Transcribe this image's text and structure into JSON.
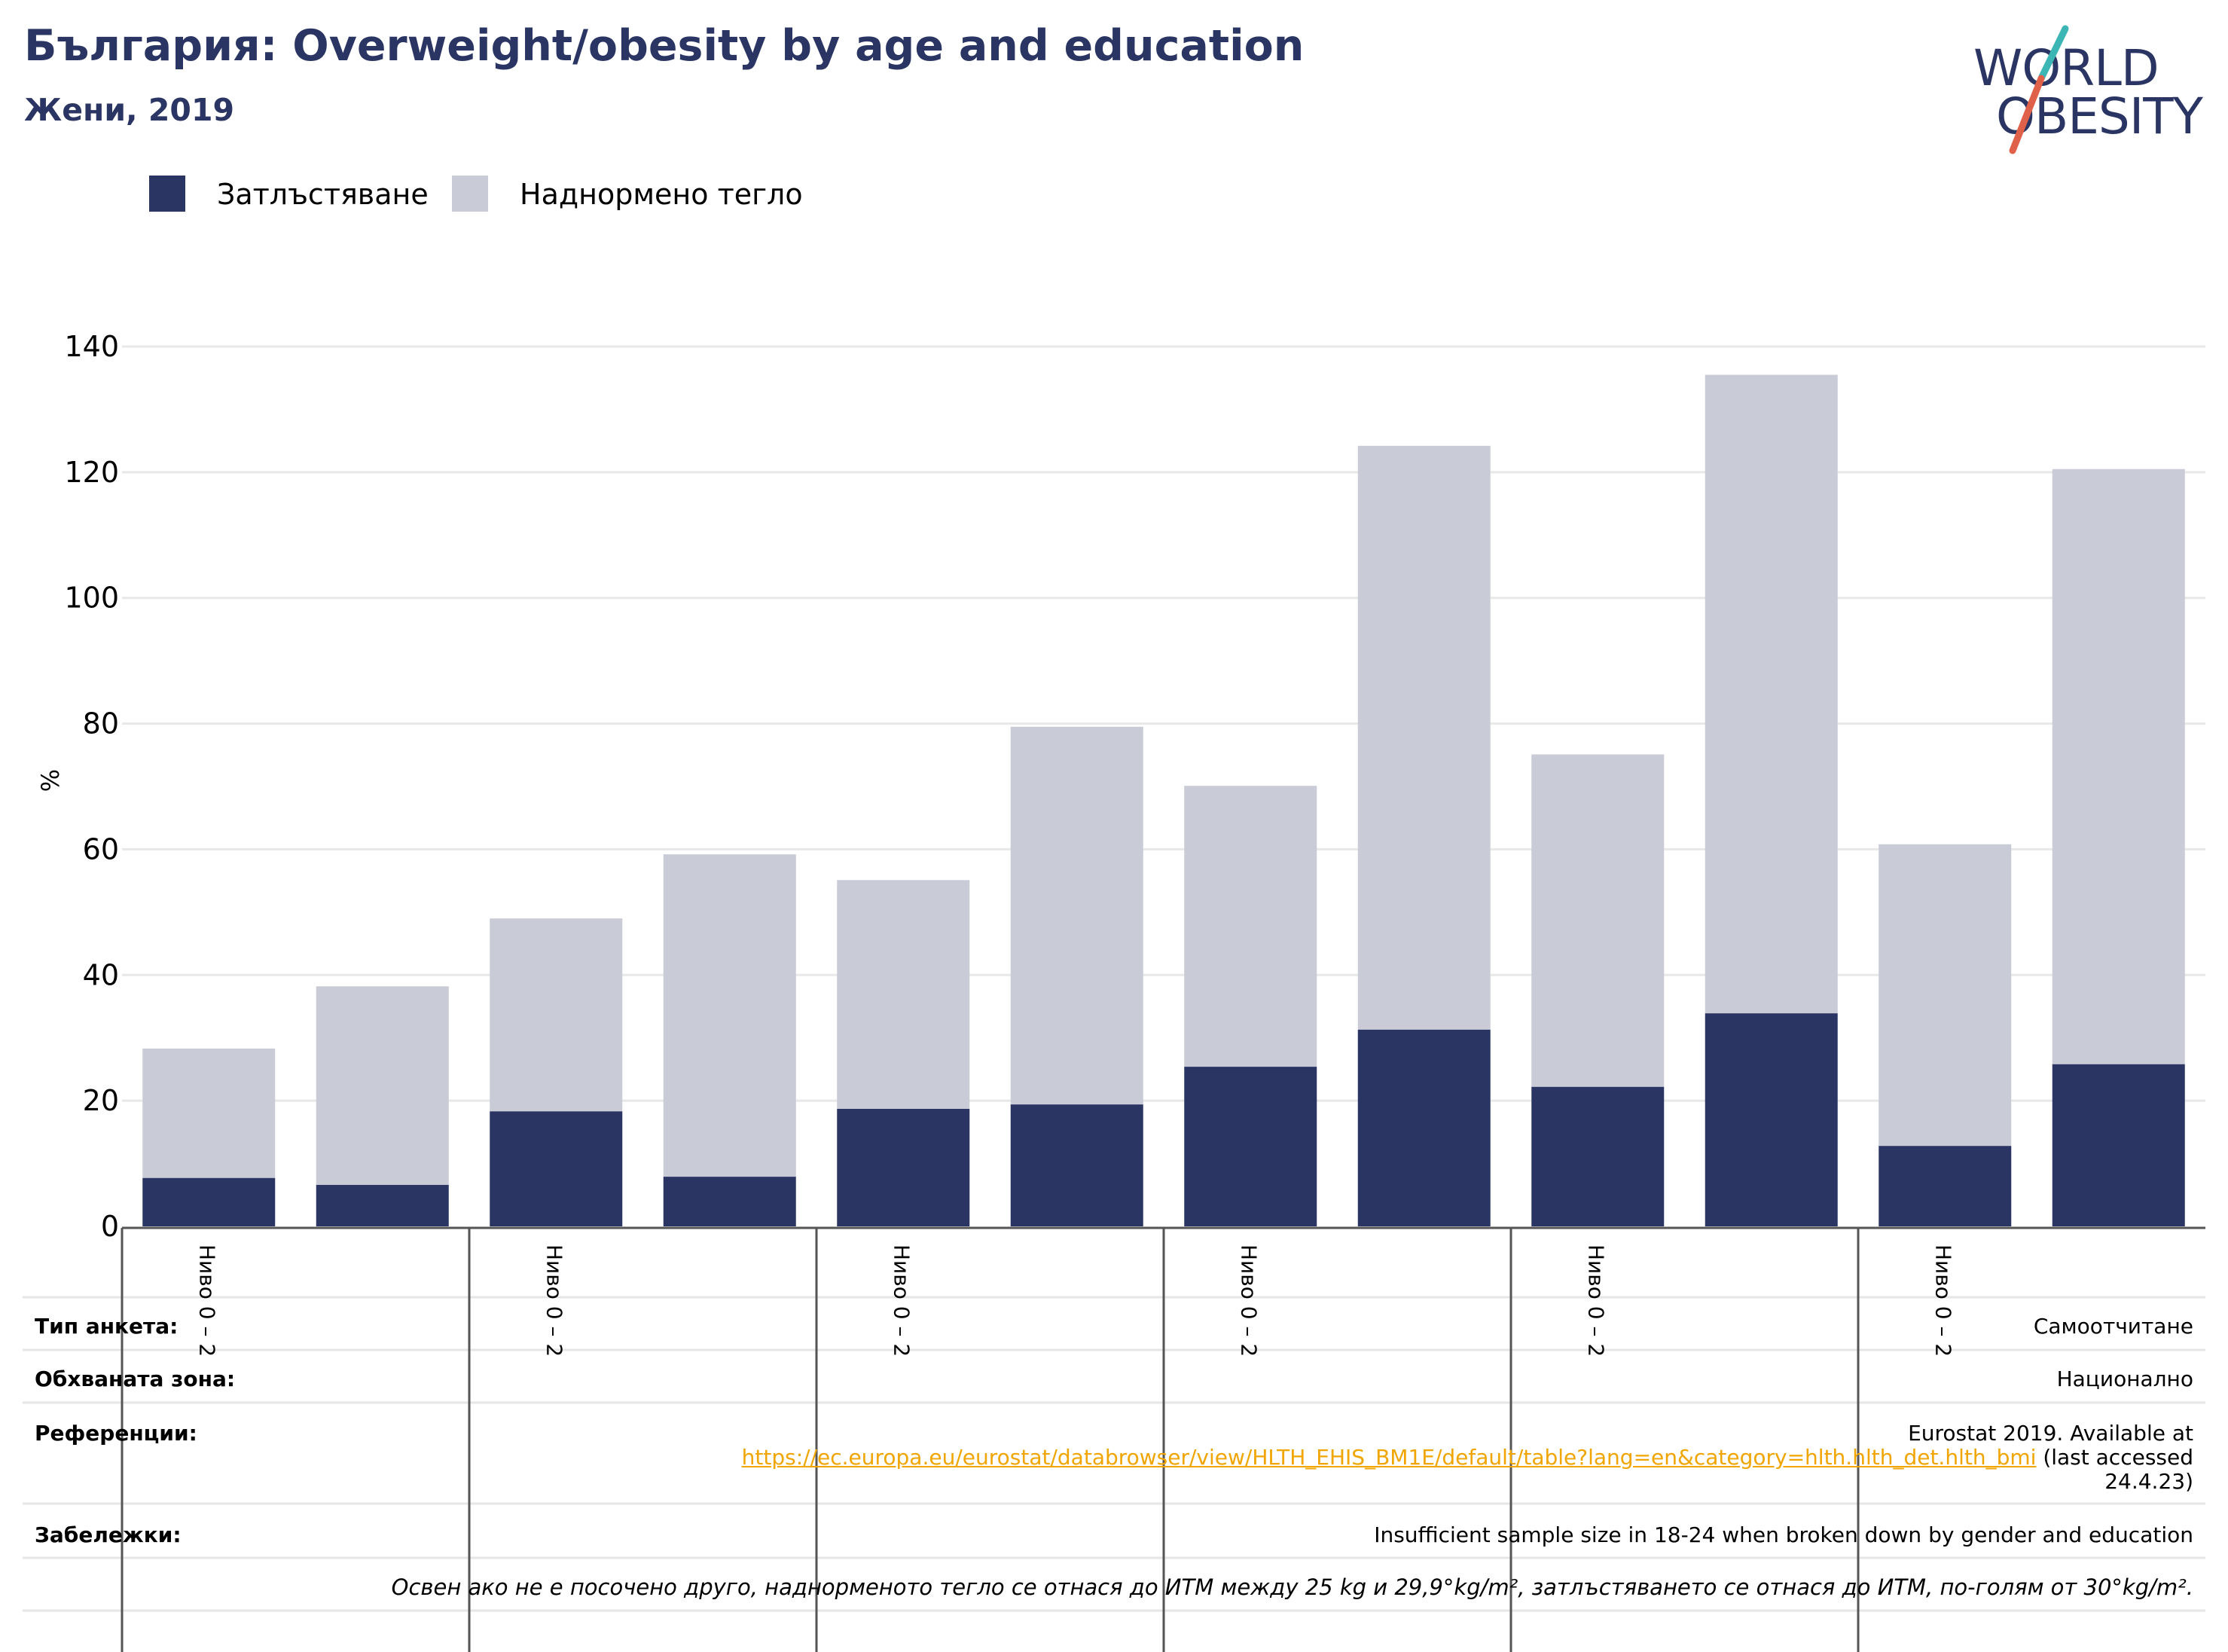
{
  "header": {
    "title": "България: Overweight/obesity by age and education",
    "subtitle": "Жени, 2019"
  },
  "logo": {
    "line1": "WORLD",
    "line2": "OBESITY",
    "colors": {
      "text": "#2a3563",
      "slash_top": "#3bb6b4",
      "slash_bottom": "#e0614a"
    }
  },
  "legend": [
    {
      "label": "Затлъстяване",
      "color": "#2a3563"
    },
    {
      "label": "Наднормено тегло",
      "color": "#c9cbd7"
    }
  ],
  "chart_data": {
    "type": "bar",
    "stacked": true,
    "ylabel": "%",
    "ylim": [
      0,
      140
    ],
    "yticks": [
      0,
      20,
      40,
      60,
      80,
      100,
      120,
      140
    ],
    "grid": true,
    "legend_position": "top-left",
    "categories": [
      "Ниво 0 – 2",
      "",
      "Ниво 0 – 2",
      "",
      "Ниво 0 – 2",
      "",
      "Ниво 0 – 2",
      "",
      "Ниво 0 – 2",
      "",
      "Ниво 0 – 2",
      ""
    ],
    "series": [
      {
        "name": "Затлъстяване",
        "color": "#2a3563",
        "values": [
          7.7,
          6.6,
          18.3,
          7.9,
          18.7,
          19.4,
          25.4,
          31.3,
          22.2,
          33.9,
          12.8,
          25.8
        ]
      },
      {
        "name": "Наднормено тегло",
        "color": "#c9cbd7",
        "values": [
          20.6,
          31.6,
          30.7,
          51.3,
          36.4,
          60.1,
          44.7,
          92.9,
          52.9,
          101.6,
          48.0,
          94.7
        ]
      }
    ]
  },
  "info": {
    "survey_type_label": "Тип анкета:",
    "survey_type_value": "Самоотчитане",
    "coverage_label": "Обхваната зона:",
    "coverage_value": "Национално",
    "references_label": "Референции:",
    "references_line1": "Eurostat 2019. Available at",
    "references_link": "https://ec.europa.eu/eurostat/databrowser/view/HLTH_EHIS_BM1E/default/table?lang=en&category=hlth.hlth_det.hlth_bmi",
    "references_after_link": "(last accessed",
    "references_line3": "24.4.23)",
    "notes_label": "Забележки:",
    "notes_value": "Insufficient sample size in 18-24 when broken down by gender and education",
    "definition_note": "Освен ако не е посочено друго, наднорменото тегло се отнася до ИТМ между 25 kg и 29,9°kg/m², затлъстяването се отнася до ИТМ, по-голям от 30°kg/m²."
  }
}
